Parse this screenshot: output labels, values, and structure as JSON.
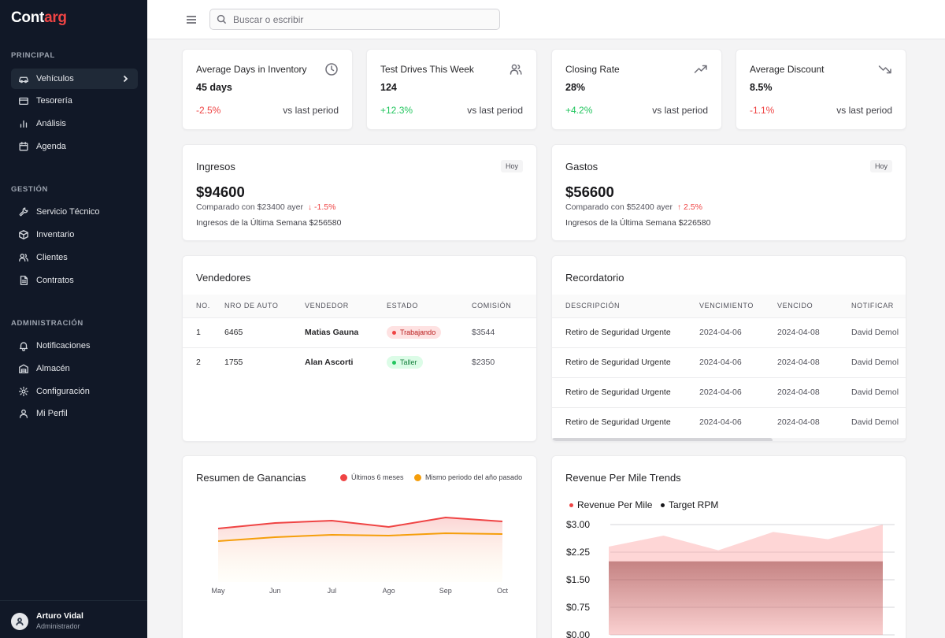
{
  "app": {
    "logo_main": "Cont",
    "logo_accent": "arg",
    "brand_color": "#ef4444"
  },
  "sidebar": {
    "sections": [
      {
        "label": "PRINCIPAL",
        "items": [
          {
            "label": "Vehículos",
            "icon": "car-icon",
            "active": true
          },
          {
            "label": "Tesorería",
            "icon": "credit-card-icon"
          },
          {
            "label": "Análisis",
            "icon": "bar-chart-icon"
          },
          {
            "label": "Agenda",
            "icon": "calendar-icon"
          }
        ]
      },
      {
        "label": "GESTIÓN",
        "items": [
          {
            "label": "Servicio Técnico",
            "icon": "wrench-icon"
          },
          {
            "label": "Inventario",
            "icon": "package-icon"
          },
          {
            "label": "Clientes",
            "icon": "users-icon"
          },
          {
            "label": "Contratos",
            "icon": "file-icon"
          }
        ]
      },
      {
        "label": "ADMINISTRACIÓN",
        "items": [
          {
            "label": "Notificaciones",
            "icon": "bell-icon"
          },
          {
            "label": "Almacén",
            "icon": "warehouse-icon"
          },
          {
            "label": "Configuración",
            "icon": "gear-icon"
          },
          {
            "label": "Mi Perfil",
            "icon": "user-icon"
          }
        ]
      }
    ],
    "user": {
      "name": "Arturo Vidal",
      "role": "Administrador"
    }
  },
  "topbar": {
    "search_placeholder": "Buscar o escribir"
  },
  "stats": [
    {
      "title": "Average Days in Inventory",
      "value": "45 days",
      "change": "-2.5%",
      "trend": "neg",
      "compare": "vs last period",
      "icon": "clock-icon"
    },
    {
      "title": "Test Drives This Week",
      "value": "124",
      "change": "+12.3%",
      "trend": "pos",
      "compare": "vs last period",
      "icon": "users-icon"
    },
    {
      "title": "Closing Rate",
      "value": "28%",
      "change": "+4.2%",
      "trend": "pos",
      "compare": "vs last period",
      "icon": "trending-up-icon"
    },
    {
      "title": "Average Discount",
      "value": "8.5%",
      "change": "-1.1%",
      "trend": "neg",
      "compare": "vs last period",
      "icon": "trending-down-icon"
    }
  ],
  "ingresos": {
    "title": "Ingresos",
    "badge": "Hoy",
    "value": "$94600",
    "compare": "Comparado con $23400 ayer",
    "arrow": "↓",
    "change": "-1.5%",
    "week": "Ingresos de la Última Semana $256580"
  },
  "gastos": {
    "title": "Gastos",
    "badge": "Hoy",
    "value": "$56600",
    "compare": "Comparado con $52400 ayer",
    "arrow": "↑",
    "change": "2.5%",
    "week": "Ingresos de la Última Semana $226580"
  },
  "vendedores": {
    "title": "Vendedores",
    "columns": [
      "NO.",
      "NRO DE AUTO",
      "VENDEDOR",
      "ESTADO",
      "COMISIÓN"
    ],
    "rows": [
      {
        "no": "1",
        "auto": "6465",
        "vendedor": "Matias Gauna",
        "estado": "Trabajando",
        "estado_color": "red",
        "comision": "$3544"
      },
      {
        "no": "2",
        "auto": "1755",
        "vendedor": "Alan Ascorti",
        "estado": "Taller",
        "estado_color": "green",
        "comision": "$2350"
      }
    ]
  },
  "recordatorio": {
    "title": "Recordatorio",
    "columns": [
      "DESCRIPCIÓN",
      "VENCIMIENTO",
      "VENCIDO",
      "NOTIFICAR"
    ],
    "rows": [
      {
        "desc": "Retiro de Seguridad Urgente",
        "venc": "2024-04-06",
        "vencido": "2024-04-08",
        "notif": "David Demol"
      },
      {
        "desc": "Retiro de Seguridad Urgente",
        "venc": "2024-04-06",
        "vencido": "2024-04-08",
        "notif": "David Demol"
      },
      {
        "desc": "Retiro de Seguridad Urgente",
        "venc": "2024-04-06",
        "vencido": "2024-04-08",
        "notif": "David Demol"
      },
      {
        "desc": "Retiro de Seguridad Urgente",
        "venc": "2024-04-06",
        "vencido": "2024-04-08",
        "notif": "David Demol"
      }
    ]
  },
  "chart_data": [
    {
      "type": "area",
      "title": "Resumen de Ganancias",
      "categories": [
        "May",
        "Jun",
        "Jul",
        "Ago",
        "Sep",
        "Oct"
      ],
      "series": [
        {
          "name": "Últimos 6 meses",
          "color": "#ef4444",
          "values": [
            68,
            75,
            78,
            70,
            82,
            77
          ]
        },
        {
          "name": "Mismo periodo del año pasado",
          "color": "#f59e0b",
          "values": [
            52,
            57,
            60,
            59,
            62,
            61
          ]
        }
      ],
      "ylim": [
        0,
        120
      ],
      "grid": false,
      "legend": "top-right"
    },
    {
      "type": "area",
      "title": "Revenue Per Mile Trends",
      "y_ticks": [
        "$3.00",
        "$2.25",
        "$1.50",
        "$0.75",
        "$0.00"
      ],
      "ylim": [
        0,
        3
      ],
      "series": [
        {
          "name": "Revenue Per Mile",
          "color": "#ef4444",
          "values": [
            2.4,
            2.7,
            2.3,
            2.8,
            2.6,
            3.0
          ]
        },
        {
          "name": "Target RPM",
          "color": "#18181b",
          "values": [
            2.0,
            2.0,
            2.0,
            2.0,
            2.0,
            2.0
          ]
        }
      ],
      "grid": true,
      "legend": "top-left"
    }
  ]
}
